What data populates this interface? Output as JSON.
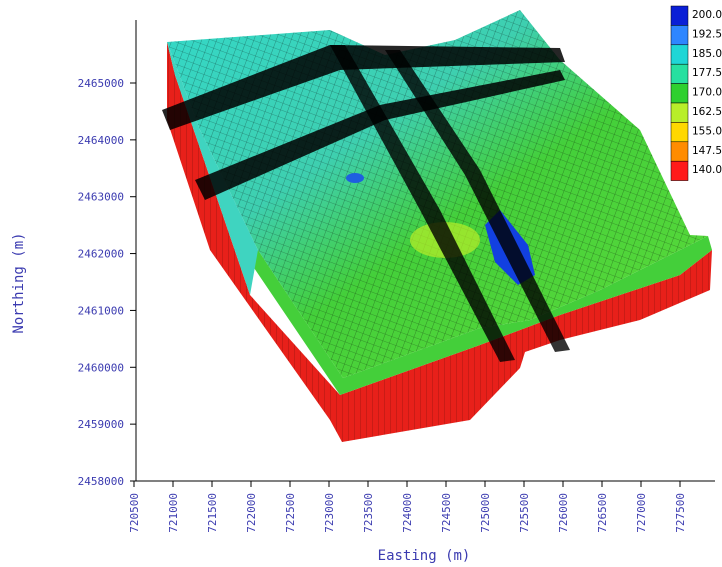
{
  "chart_data": {
    "type": "heatmap",
    "title": "",
    "xlabel": "Easting (m)",
    "ylabel": "Northing (m)",
    "x_ticks": [
      "720500",
      "721000",
      "721500",
      "722000",
      "722500",
      "723000",
      "723500",
      "724000",
      "724500",
      "725000",
      "725500",
      "726000",
      "726500",
      "727000",
      "727500"
    ],
    "y_ticks": [
      "2465000",
      "2464000",
      "2463000",
      "2462000",
      "2461000",
      "2460000",
      "2459000",
      "2458000"
    ],
    "xlim": [
      720500,
      727500
    ],
    "ylim": [
      2458000,
      2465000
    ],
    "legend": {
      "placement": "top-right",
      "entries": [
        {
          "label": "200.0",
          "color": "#0a1fd6"
        },
        {
          "label": "192.5",
          "color": "#2e86ff"
        },
        {
          "label": "185.0",
          "color": "#1fd6d6"
        },
        {
          "label": "177.5",
          "color": "#27e0a0"
        },
        {
          "label": "170.0",
          "color": "#2fd02f"
        },
        {
          "label": "162.5",
          "color": "#b8ee2a"
        },
        {
          "label": "155.0",
          "color": "#ffd800"
        },
        {
          "label": "147.5",
          "color": "#ff8c00"
        },
        {
          "label": "140.0",
          "color": "#ff1a1a"
        }
      ]
    },
    "colors": {
      "top_cyan": "#34d8c8",
      "top_green": "#44cf3a",
      "side_red": "#e8201a",
      "grid_line": "#000000",
      "axis_text": "#3b3bb0"
    }
  }
}
